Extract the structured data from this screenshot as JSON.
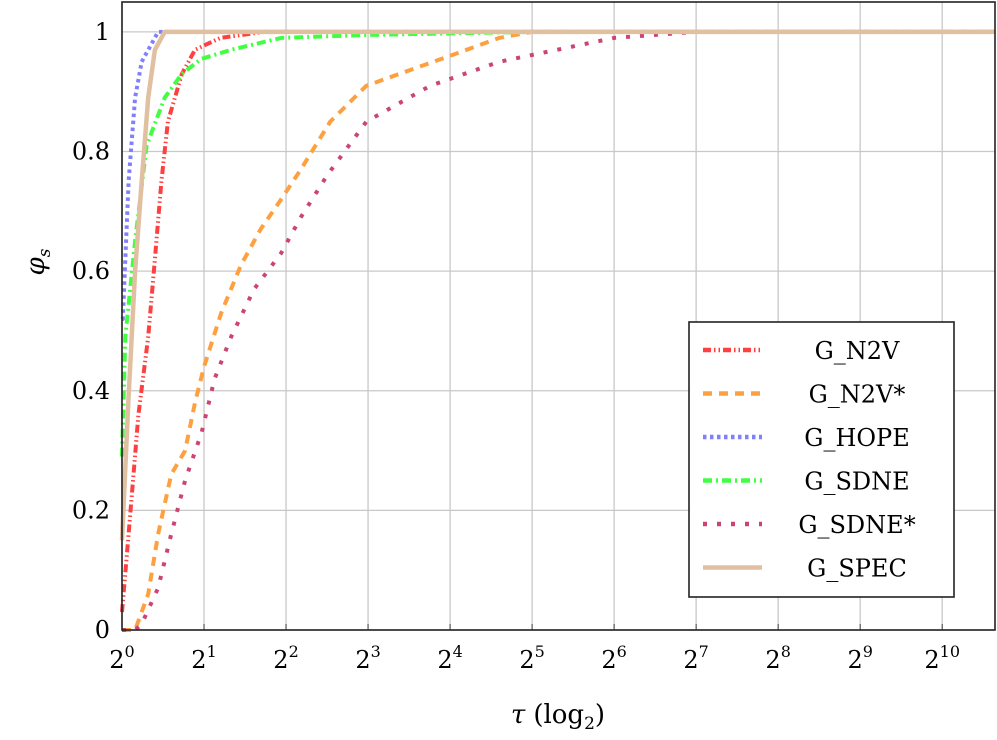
{
  "chart_data": {
    "type": "line",
    "title": "",
    "xlabel": "τ (log₂)",
    "xlabel_parts": {
      "symbol": "τ",
      "unit": "(log",
      "sub": "2",
      "close": ")"
    },
    "ylabel": "φs",
    "ylabel_parts": {
      "symbol": "φ",
      "sub": "s"
    },
    "x_scale": "log2",
    "xlim": [
      1,
      1600
    ],
    "ylim": [
      0,
      1.05
    ],
    "grid": true,
    "legend_placement": "bottom-right",
    "x_ticks": [
      {
        "base": "2",
        "exp": "0",
        "value": 1
      },
      {
        "base": "2",
        "exp": "1",
        "value": 2
      },
      {
        "base": "2",
        "exp": "2",
        "value": 4
      },
      {
        "base": "2",
        "exp": "3",
        "value": 8
      },
      {
        "base": "2",
        "exp": "4",
        "value": 16
      },
      {
        "base": "2",
        "exp": "5",
        "value": 32
      },
      {
        "base": "2",
        "exp": "6",
        "value": 64
      },
      {
        "base": "2",
        "exp": "7",
        "value": 128
      },
      {
        "base": "2",
        "exp": "8",
        "value": 256
      },
      {
        "base": "2",
        "exp": "9",
        "value": 512
      },
      {
        "base": "2",
        "exp": "10",
        "value": 1024
      }
    ],
    "y_ticks": [
      {
        "label": "0",
        "value": 0
      },
      {
        "label": "0.2",
        "value": 0.2
      },
      {
        "label": "0.4",
        "value": 0.4
      },
      {
        "label": "0.6",
        "value": 0.6
      },
      {
        "label": "0.8",
        "value": 0.8
      },
      {
        "label": "1",
        "value": 1
      }
    ],
    "series": [
      {
        "name": "G_N2V",
        "color": "#ff4040",
        "style": "dash-dot-dot",
        "x": [
          1,
          1.057,
          1.149,
          1.248,
          1.32,
          1.395,
          1.474,
          1.659,
          1.853,
          2.297,
          3.317,
          1600
        ],
        "y": [
          0.03,
          0.16,
          0.36,
          0.49,
          0.62,
          0.75,
          0.85,
          0.93,
          0.97,
          0.99,
          1.0,
          1.0
        ]
      },
      {
        "name": "G_N2V*",
        "color": "#ffa040",
        "style": "dashed",
        "x": [
          1,
          1.117,
          1.248,
          1.357,
          1.516,
          1.705,
          1.853,
          2,
          2.313,
          2.732,
          3.227,
          3.837,
          4.532,
          5.816,
          7.89,
          16,
          24.25,
          32,
          1600
        ],
        "y": [
          0,
          0,
          0.06,
          0.16,
          0.26,
          0.3,
          0.38,
          0.44,
          0.53,
          0.61,
          0.67,
          0.72,
          0.77,
          0.85,
          0.91,
          0.96,
          0.99,
          1.0,
          1.0
        ]
      },
      {
        "name": "G_HOPE",
        "color": "#8080ff",
        "style": "dotted",
        "x": [
          1.0,
          1.007,
          1.057,
          1.117,
          1.181,
          1.357,
          1600
        ],
        "y": [
          0.52,
          0.52,
          0.75,
          0.89,
          0.95,
          1.0,
          1.0
        ]
      },
      {
        "name": "G_SDNE",
        "color": "#40ff40",
        "style": "dash-dot",
        "x": [
          1,
          1.028,
          1.117,
          1.231,
          1.434,
          1.659,
          1.959,
          2.514,
          3.837,
          8,
          32,
          1600
        ],
        "y": [
          0.29,
          0.49,
          0.65,
          0.81,
          0.89,
          0.93,
          0.955,
          0.97,
          0.99,
          0.995,
          1.0,
          1.0
        ]
      },
      {
        "name": "G_SDNE*",
        "color": "#cc4477",
        "style": "loosely-dotted",
        "x": [
          1,
          1.117,
          1.181,
          1.357,
          1.516,
          1.705,
          1.959,
          2.188,
          2.514,
          3.053,
          3.837,
          4.532,
          5.657,
          7.89,
          13.55,
          24.25,
          64,
          128,
          1600
        ],
        "y": [
          0,
          0,
          0.01,
          0.07,
          0.16,
          0.25,
          0.33,
          0.42,
          0.49,
          0.57,
          0.63,
          0.69,
          0.76,
          0.85,
          0.91,
          0.95,
          0.99,
          1.0,
          1.0
        ]
      },
      {
        "name": "G_SPEC",
        "color": "#e0c0a0",
        "style": "solid",
        "x": [
          1,
          1.057,
          1.117,
          1.181,
          1.248,
          1.32,
          1.434,
          1600
        ],
        "y": [
          0.15,
          0.39,
          0.6,
          0.75,
          0.89,
          0.97,
          1.0,
          1.0
        ]
      }
    ]
  }
}
